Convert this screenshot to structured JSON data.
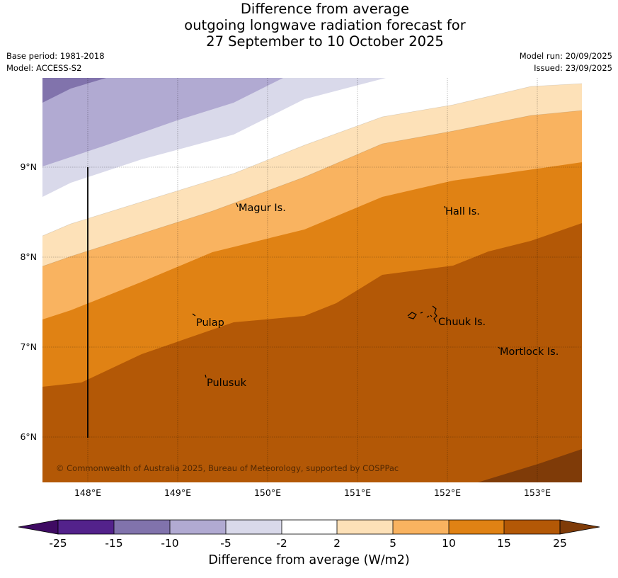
{
  "title": {
    "line1": "Difference from average",
    "line2": "outgoing longwave radiation forecast for",
    "line3": "27 September to 10 October 2025"
  },
  "meta_left": {
    "base_period": "Base period: 1981-2018",
    "model": "Model: ACCESS-S2"
  },
  "meta_right": {
    "model_run": "Model run: 20/09/2025",
    "issued": "Issued: 23/09/2025"
  },
  "map": {
    "lon_range": [
      147.5,
      153.5
    ],
    "lat_range": [
      5.5,
      10.0
    ],
    "x_ticks": [
      "148°E",
      "149°E",
      "150°E",
      "151°E",
      "152°E",
      "153°E"
    ],
    "y_ticks": [
      "9°N",
      "8°N",
      "7°N",
      "6°N"
    ],
    "copyright": "© Commonwealth of Australia 2025, Bureau of Meteorology, supported by COSPPac"
  },
  "places": {
    "magur": "Magur Is.",
    "hall": "Hall Is.",
    "pulap": "Pulap",
    "chuuk": "Chuuk Is.",
    "mortlock": "Mortlock Is.",
    "pulusuk": "Pulusuk"
  },
  "colorbar": {
    "label": "Difference from average (W/m2)",
    "ticks": [
      "-25",
      "-15",
      "-10",
      "-5",
      "-2",
      "2",
      "5",
      "10",
      "15",
      "25"
    ],
    "colors": {
      "lt_neg25": "#3f0b63",
      "neg25_neg15": "#53228b",
      "neg15_neg10": "#8173ac",
      "neg10_neg5": "#b1aad2",
      "neg5_neg2": "#d9d9ea",
      "neg2_2": "#ffffff",
      "p2_5": "#fde1b8",
      "p5_10": "#f9b360",
      "p10_15": "#e08214",
      "p15_25": "#b35806",
      "gt_25": "#7f3b08"
    }
  }
}
